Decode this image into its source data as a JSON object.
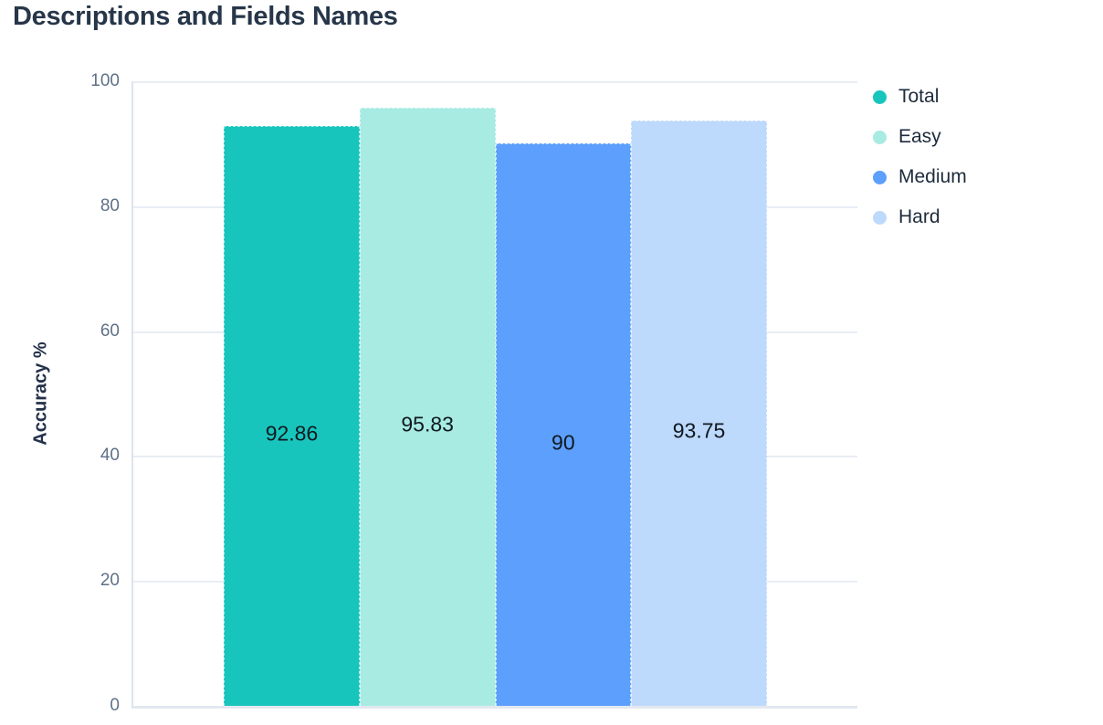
{
  "page": {
    "title": "Descriptions and Fields Names"
  },
  "chart_data": {
    "type": "bar",
    "title": "Descriptions and Fields Names",
    "xlabel": "",
    "ylabel": "Accuracy %",
    "ylim": [
      0,
      100
    ],
    "yticks": [
      0,
      20,
      40,
      60,
      80,
      100
    ],
    "grid": true,
    "legend_position": "right",
    "categories": [
      ""
    ],
    "series": [
      {
        "name": "Total",
        "values": [
          92.86
        ],
        "label": "92.86",
        "color": "#18c5bc"
      },
      {
        "name": "Easy",
        "values": [
          95.83
        ],
        "label": "95.83",
        "color": "#a7ebe2"
      },
      {
        "name": "Medium",
        "values": [
          90
        ],
        "label": "90",
        "color": "#5c9ffc"
      },
      {
        "name": "Hard",
        "values": [
          93.75
        ],
        "label": "93.75",
        "color": "#bdd9fc"
      }
    ]
  },
  "colors": {
    "title_text": "#273649",
    "axis_label_text": "#22304a",
    "tick_text": "#5f7186",
    "value_label_text": "#10181f",
    "legend_text": "#1e2b3c",
    "gridline": "#e9edf4",
    "y_axis_line": "#dde3eb",
    "x_axis_line": "#e2e8f0",
    "background": "#ffffff"
  }
}
